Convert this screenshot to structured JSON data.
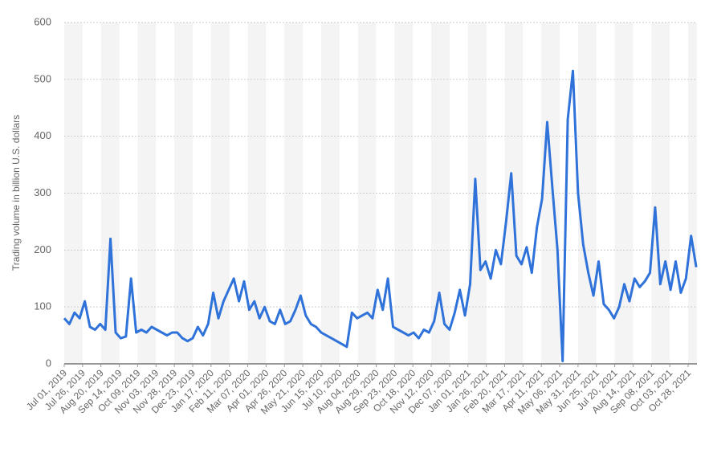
{
  "chart_data": {
    "type": "line",
    "y_label": "Trading volume in billion U.S. dollars",
    "color": "#2f72d9",
    "grid": true,
    "x": [
      "2019-07-01",
      "2019-07-08",
      "2019-07-15",
      "2019-07-22",
      "2019-07-29",
      "2019-08-05",
      "2019-08-12",
      "2019-08-19",
      "2019-08-26",
      "2019-09-02",
      "2019-09-09",
      "2019-09-16",
      "2019-09-23",
      "2019-09-30",
      "2019-10-07",
      "2019-10-14",
      "2019-10-21",
      "2019-10-28",
      "2019-11-04",
      "2019-11-11",
      "2019-11-18",
      "2019-11-25",
      "2019-12-02",
      "2019-12-09",
      "2019-12-16",
      "2019-12-23",
      "2019-12-30",
      "2020-01-06",
      "2020-01-13",
      "2020-01-20",
      "2020-01-27",
      "2020-02-03",
      "2020-02-10",
      "2020-02-17",
      "2020-02-24",
      "2020-03-02",
      "2020-03-09",
      "2020-03-16",
      "2020-03-23",
      "2020-03-30",
      "2020-04-06",
      "2020-04-13",
      "2020-04-20",
      "2020-04-27",
      "2020-05-04",
      "2020-05-11",
      "2020-05-18",
      "2020-05-25",
      "2020-06-01",
      "2020-06-08",
      "2020-06-15",
      "2020-06-22",
      "2020-06-29",
      "2020-07-06",
      "2020-07-13",
      "2020-07-20",
      "2020-07-27",
      "2020-08-03",
      "2020-08-10",
      "2020-08-17",
      "2020-08-24",
      "2020-08-31",
      "2020-09-07",
      "2020-09-14",
      "2020-09-21",
      "2020-09-28",
      "2020-10-05",
      "2020-10-12",
      "2020-10-19",
      "2020-10-26",
      "2020-11-02",
      "2020-11-09",
      "2020-11-16",
      "2020-11-23",
      "2020-11-30",
      "2020-12-07",
      "2020-12-14",
      "2020-12-21",
      "2020-12-28",
      "2021-01-04",
      "2021-01-11",
      "2021-01-18",
      "2021-01-25",
      "2021-02-01",
      "2021-02-08",
      "2021-02-15",
      "2021-02-22",
      "2021-03-01",
      "2021-03-08",
      "2021-03-15",
      "2021-03-22",
      "2021-03-29",
      "2021-04-05",
      "2021-04-12",
      "2021-04-19",
      "2021-04-26",
      "2021-05-03",
      "2021-05-10",
      "2021-05-17",
      "2021-05-24",
      "2021-05-31",
      "2021-06-07",
      "2021-06-14",
      "2021-06-21",
      "2021-06-28",
      "2021-07-05",
      "2021-07-12",
      "2021-07-19",
      "2021-07-26",
      "2021-08-02",
      "2021-08-09",
      "2021-08-16",
      "2021-08-23",
      "2021-08-30",
      "2021-09-06",
      "2021-09-13",
      "2021-09-20",
      "2021-09-27",
      "2021-10-04",
      "2021-10-11",
      "2021-10-18",
      "2021-10-25",
      "2021-11-01",
      "2021-11-08"
    ],
    "values": [
      80,
      70,
      90,
      80,
      110,
      65,
      60,
      70,
      60,
      220,
      55,
      45,
      48,
      150,
      55,
      60,
      55,
      65,
      60,
      55,
      50,
      55,
      55,
      45,
      40,
      45,
      65,
      50,
      70,
      125,
      80,
      110,
      130,
      150,
      110,
      145,
      95,
      110,
      80,
      100,
      75,
      70,
      95,
      70,
      75,
      95,
      120,
      85,
      70,
      65,
      55,
      50,
      45,
      40,
      35,
      30,
      90,
      80,
      85,
      90,
      80,
      130,
      95,
      150,
      65,
      60,
      55,
      50,
      55,
      45,
      60,
      55,
      75,
      125,
      70,
      60,
      90,
      130,
      85,
      140,
      325,
      165,
      180,
      150,
      200,
      175,
      250,
      335,
      190,
      175,
      205,
      160,
      240,
      290,
      425,
      310,
      200,
      5,
      430,
      515,
      300,
      210,
      160,
      120,
      180,
      105,
      95,
      80,
      100,
      140,
      110,
      150,
      135,
      145,
      160,
      275,
      140,
      180,
      130,
      180,
      125,
      150,
      225,
      170
    ],
    "xlim": [
      "2019-07-01",
      "2021-11-09"
    ],
    "xticks": [
      {
        "value": "2019-07-01",
        "label": "Jul 01, 2019"
      },
      {
        "value": "2019-07-26",
        "label": "Jul 26, 2019"
      },
      {
        "value": "2019-08-20",
        "label": "Aug 20, 2019"
      },
      {
        "value": "2019-09-14",
        "label": "Sep 14, 2019"
      },
      {
        "value": "2019-10-09",
        "label": "Oct 09, 2019"
      },
      {
        "value": "2019-11-03",
        "label": "Nov 03, 2019"
      },
      {
        "value": "2019-11-28",
        "label": "Nov 28, 2019"
      },
      {
        "value": "2019-12-23",
        "label": "Dec 23, 2019"
      },
      {
        "value": "2020-01-17",
        "label": "Jan 17, 2020"
      },
      {
        "value": "2020-02-11",
        "label": "Feb 11, 2020"
      },
      {
        "value": "2020-03-07",
        "label": "Mar 07, 2020"
      },
      {
        "value": "2020-04-01",
        "label": "Apr 01, 2020"
      },
      {
        "value": "2020-04-26",
        "label": "Apr 26, 2020"
      },
      {
        "value": "2020-05-21",
        "label": "May 21, 2020"
      },
      {
        "value": "2020-06-15",
        "label": "Jun 15, 2020"
      },
      {
        "value": "2020-07-10",
        "label": "Jul 10, 2020"
      },
      {
        "value": "2020-08-04",
        "label": "Aug 04, 2020"
      },
      {
        "value": "2020-08-29",
        "label": "Aug 29, 2020"
      },
      {
        "value": "2020-09-23",
        "label": "Sep 23, 2020"
      },
      {
        "value": "2020-10-18",
        "label": "Oct 18, 2020"
      },
      {
        "value": "2020-11-12",
        "label": "Nov 12, 2020"
      },
      {
        "value": "2020-12-07",
        "label": "Dec 07, 2020"
      },
      {
        "value": "2021-01-01",
        "label": "Jan 01, 2021"
      },
      {
        "value": "2021-01-26",
        "label": "Jan 26, 2021"
      },
      {
        "value": "2021-02-20",
        "label": "Feb 20, 2021"
      },
      {
        "value": "2021-03-17",
        "label": "Mar 17, 2021"
      },
      {
        "value": "2021-04-11",
        "label": "Apr 11, 2021"
      },
      {
        "value": "2021-05-06",
        "label": "May 06, 2021"
      },
      {
        "value": "2021-05-31",
        "label": "May 31, 2021"
      },
      {
        "value": "2021-06-25",
        "label": "Jun 25, 2021"
      },
      {
        "value": "2021-07-20",
        "label": "Jul 20, 2021"
      },
      {
        "value": "2021-08-14",
        "label": "Aug 14, 2021"
      },
      {
        "value": "2021-09-08",
        "label": "Sep 08, 2021"
      },
      {
        "value": "2021-10-03",
        "label": "Oct 03, 2021"
      },
      {
        "value": "2021-10-28",
        "label": "Oct 28, 2021"
      }
    ],
    "ylim": [
      0,
      600
    ],
    "yticks": [
      0,
      100,
      200,
      300,
      400,
      500,
      600
    ]
  }
}
